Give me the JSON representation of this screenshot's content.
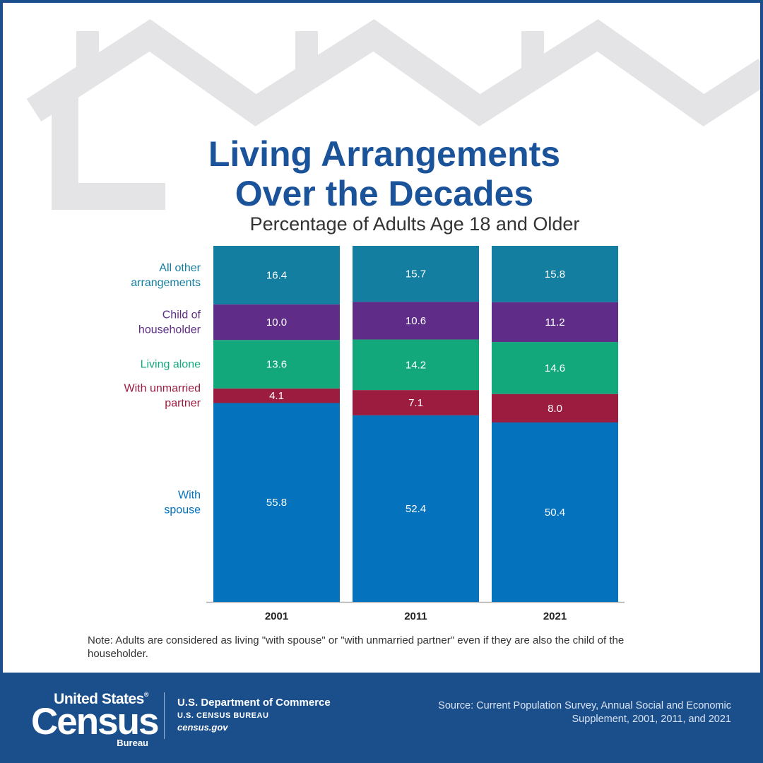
{
  "title_line1": "Living Arrangements",
  "title_line2": "Over the Decades",
  "subtitle": "Percentage of Adults Age 18 and Older",
  "note": "Note: Adults are considered as living \"with spouse\" or \"with unmarried partner\" even if they are also the child of the householder.",
  "footer": {
    "logo_top": "United States",
    "logo_reg": "®",
    "logo_main": "Census",
    "logo_bottom": "Bureau",
    "dept": "U.S. Department of Commerce",
    "bureau": "U.S. CENSUS BUREAU",
    "site": "census.gov",
    "source": "Source: Current Population Survey, Annual Social and Economic Supplement, 2001, 2011, and 2021"
  },
  "colors": {
    "brand": "#1b539a",
    "footer_bg": "#1b4f8c",
    "house_outline": "#e4e4e6"
  },
  "chart_data": {
    "type": "bar",
    "stacked": true,
    "title": "Living Arrangements Over the Decades",
    "subtitle": "Percentage of Adults Age 18 and Older",
    "categories": [
      "2001",
      "2011",
      "2021"
    ],
    "series": [
      {
        "name": "With spouse",
        "label_lines": [
          "With",
          "spouse"
        ],
        "color": "#0472bd",
        "values": [
          55.8,
          52.4,
          50.4
        ]
      },
      {
        "name": "With unmarried partner",
        "label_lines": [
          "With unmarried",
          "partner"
        ],
        "color": "#9b1c3f",
        "values": [
          4.1,
          7.1,
          8.0
        ]
      },
      {
        "name": "Living alone",
        "label_lines": [
          "Living alone"
        ],
        "color": "#13a87c",
        "values": [
          13.6,
          14.2,
          14.6
        ]
      },
      {
        "name": "Child of householder",
        "label_lines": [
          "Child of",
          "householder"
        ],
        "color": "#5f2d88",
        "values": [
          10.0,
          10.6,
          11.2
        ]
      },
      {
        "name": "All other arrangements",
        "label_lines": [
          "All other",
          "arrangements"
        ],
        "color": "#137ea0",
        "values": [
          16.4,
          15.7,
          15.8
        ]
      }
    ],
    "ylim": [
      0,
      100
    ],
    "xlabel": "",
    "ylabel": "",
    "grid": false,
    "legend": "left"
  }
}
